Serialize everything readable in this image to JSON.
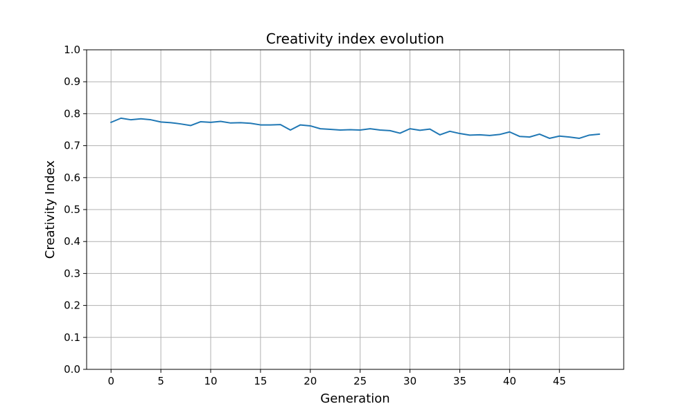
{
  "chart_data": {
    "type": "line",
    "title": "Creativity index evolution",
    "xlabel": "Generation",
    "ylabel": "Creativity Index",
    "xlim": [
      -2.45,
      51.45
    ],
    "ylim": [
      0.0,
      1.0
    ],
    "xticks": [
      0,
      5,
      10,
      15,
      20,
      25,
      30,
      35,
      40,
      45
    ],
    "xtick_labels": [
      "0",
      "5",
      "10",
      "15",
      "20",
      "25",
      "30",
      "35",
      "40",
      "45"
    ],
    "yticks": [
      0.0,
      0.1,
      0.2,
      0.3,
      0.4,
      0.5,
      0.6,
      0.7,
      0.8,
      0.9,
      1.0
    ],
    "ytick_labels": [
      "0.0",
      "0.1",
      "0.2",
      "0.3",
      "0.4",
      "0.5",
      "0.6",
      "0.7",
      "0.8",
      "0.9",
      "1.0"
    ],
    "grid": true,
    "series": [
      {
        "color": "#1f77b4",
        "x": [
          0,
          1,
          2,
          3,
          4,
          5,
          6,
          7,
          8,
          9,
          10,
          11,
          12,
          13,
          14,
          15,
          16,
          17,
          18,
          19,
          20,
          21,
          22,
          23,
          24,
          25,
          26,
          27,
          28,
          29,
          30,
          31,
          32,
          33,
          34,
          35,
          36,
          37,
          38,
          39,
          40,
          41,
          42,
          43,
          44,
          45,
          46,
          47,
          48,
          49
        ],
        "values": [
          0.773,
          0.786,
          0.781,
          0.784,
          0.781,
          0.774,
          0.772,
          0.768,
          0.763,
          0.775,
          0.773,
          0.776,
          0.771,
          0.772,
          0.77,
          0.765,
          0.765,
          0.766,
          0.749,
          0.765,
          0.762,
          0.753,
          0.751,
          0.749,
          0.75,
          0.749,
          0.753,
          0.749,
          0.747,
          0.739,
          0.753,
          0.748,
          0.752,
          0.734,
          0.745,
          0.738,
          0.733,
          0.734,
          0.732,
          0.735,
          0.743,
          0.729,
          0.727,
          0.736,
          0.723,
          0.73,
          0.727,
          0.723,
          0.733,
          0.736
        ]
      }
    ]
  }
}
